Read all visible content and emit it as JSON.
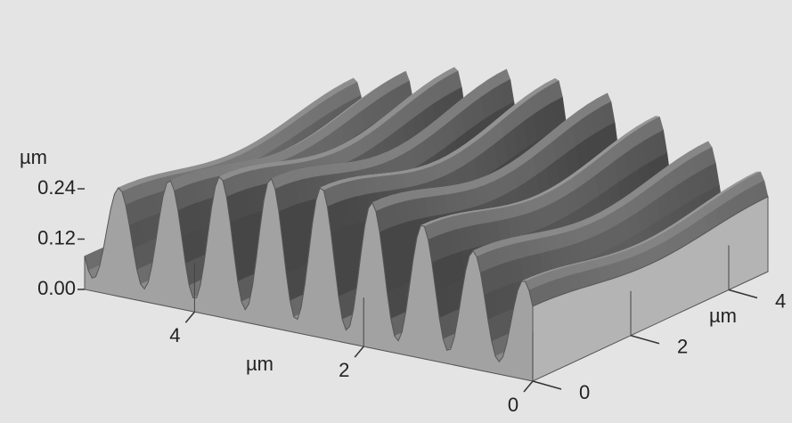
{
  "chart_data": {
    "type": "surface",
    "x_label": "µm",
    "y_label": "µm",
    "z_label": "µm",
    "xlim": [
      0,
      5.3
    ],
    "ylim": [
      0,
      4.8
    ],
    "zlim": [
      0,
      0.24
    ],
    "xticks": [
      0,
      2,
      4
    ],
    "yticks": [
      0,
      2,
      4
    ],
    "zticks": [
      {
        "value": 0,
        "label": "0.00"
      },
      0.12,
      0.24
    ]
  }
}
